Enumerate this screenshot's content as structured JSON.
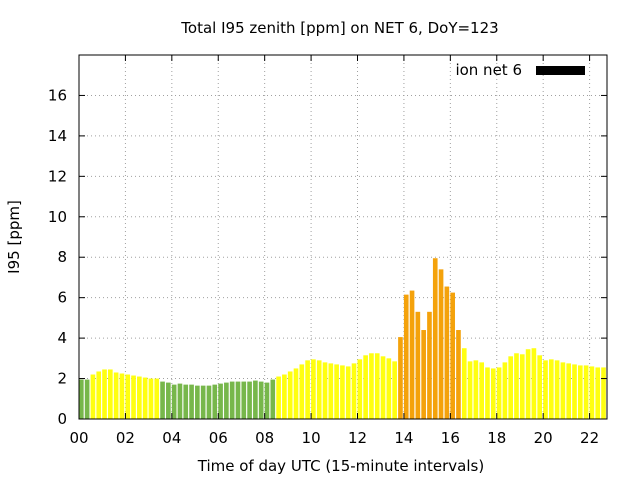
{
  "chart_data": {
    "type": "bar",
    "title": "Total I95 zenith [ppm] on NET 6, DoY=123",
    "xlabel": "Time of day UTC (15-minute intervals)",
    "ylabel": "I95 [ppm]",
    "ylim": [
      0,
      18
    ],
    "yticks": [
      0,
      2,
      4,
      6,
      8,
      10,
      12,
      14,
      16
    ],
    "xlim": [
      0,
      22.75
    ],
    "xticks": [
      "00",
      "02",
      "04",
      "06",
      "08",
      "10",
      "12",
      "14",
      "16",
      "18",
      "20",
      "22"
    ],
    "grid": true,
    "legend": {
      "label": "ion net 6",
      "position": "top-right",
      "color": "#000000"
    },
    "bar_width_hours": 0.2,
    "colors": {
      "low": "#77b74b",
      "moderate": "#ffff10",
      "elevated": "#f4a20b"
    },
    "series": [
      {
        "x_start": 0,
        "step_hours": 0.25,
        "values": [
          1.95,
          1.95,
          2.2,
          2.35,
          2.45,
          2.45,
          2.3,
          2.25,
          2.2,
          2.15,
          2.1,
          2.05,
          2.0,
          2.0,
          1.85,
          1.8,
          1.7,
          1.75,
          1.7,
          1.7,
          1.65,
          1.65,
          1.65,
          1.7,
          1.75,
          1.8,
          1.85,
          1.85,
          1.85,
          1.85,
          1.9,
          1.85,
          1.8,
          1.95,
          2.1,
          2.2,
          2.35,
          2.5,
          2.7,
          2.9,
          2.95,
          2.9,
          2.8,
          2.75,
          2.7,
          2.65,
          2.6,
          2.75,
          2.95,
          3.15,
          3.25,
          3.25,
          3.1,
          3.0,
          2.85,
          4.05,
          6.15,
          6.35,
          5.3,
          4.4,
          5.3,
          7.95,
          7.4,
          6.55,
          6.25,
          4.4,
          3.5,
          2.85,
          2.9,
          2.8,
          2.55,
          2.5,
          2.55,
          2.8,
          3.1,
          3.25,
          3.2,
          3.45,
          3.5,
          3.15,
          2.9,
          2.95,
          2.9,
          2.8,
          2.75,
          2.7,
          2.65,
          2.65,
          2.6,
          2.55,
          2.55
        ],
        "levels": [
          "low",
          "low",
          "moderate",
          "moderate",
          "moderate",
          "moderate",
          "moderate",
          "moderate",
          "moderate",
          "moderate",
          "moderate",
          "moderate",
          "moderate",
          "moderate",
          "low",
          "low",
          "low",
          "low",
          "low",
          "low",
          "low",
          "low",
          "low",
          "low",
          "low",
          "low",
          "low",
          "low",
          "low",
          "low",
          "low",
          "low",
          "low",
          "low",
          "moderate",
          "moderate",
          "moderate",
          "moderate",
          "moderate",
          "moderate",
          "moderate",
          "moderate",
          "moderate",
          "moderate",
          "moderate",
          "moderate",
          "moderate",
          "moderate",
          "moderate",
          "moderate",
          "moderate",
          "moderate",
          "moderate",
          "moderate",
          "moderate",
          "elevated",
          "elevated",
          "elevated",
          "elevated",
          "elevated",
          "elevated",
          "elevated",
          "elevated",
          "elevated",
          "elevated",
          "elevated",
          "moderate",
          "moderate",
          "moderate",
          "moderate",
          "moderate",
          "moderate",
          "moderate",
          "moderate",
          "moderate",
          "moderate",
          "moderate",
          "moderate",
          "moderate",
          "moderate",
          "moderate",
          "moderate",
          "moderate",
          "moderate",
          "moderate",
          "moderate",
          "moderate",
          "moderate",
          "moderate",
          "moderate",
          "moderate"
        ]
      }
    ]
  }
}
